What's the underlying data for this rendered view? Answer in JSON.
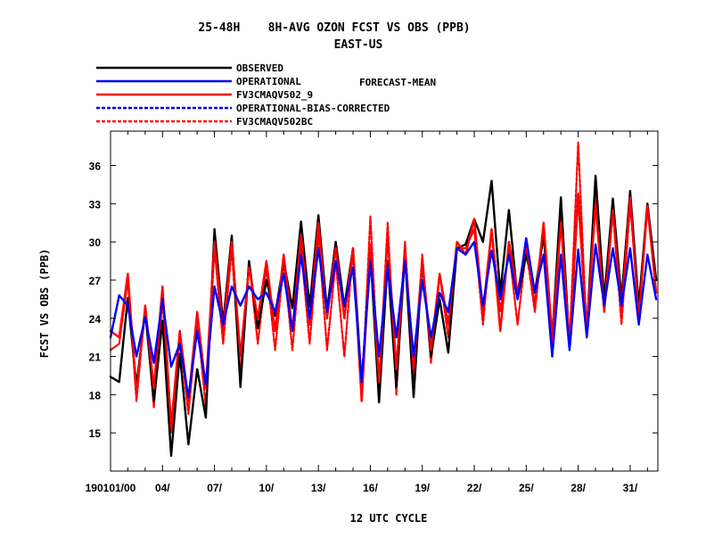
{
  "chart_data": {
    "type": "line",
    "title": "25-48H    8H-AVG OZON FCST VS OBS (PPB)",
    "subtitle": "EAST-US",
    "extra_label": "FORECAST-MEAN",
    "xlabel": "12 UTC CYCLE",
    "ylabel": "FCST VS OBS (PPB)",
    "xlim": [
      0,
      31.6
    ],
    "ylim": [
      12,
      38.7
    ],
    "grid": false,
    "legend_placement": "top-left",
    "x_ticks": [
      {
        "x": 0,
        "label": "190101/00"
      },
      {
        "x": 3,
        "label": "04/"
      },
      {
        "x": 6,
        "label": "07/"
      },
      {
        "x": 9,
        "label": "10/"
      },
      {
        "x": 12,
        "label": "13/"
      },
      {
        "x": 15,
        "label": "16/"
      },
      {
        "x": 18,
        "label": "19/"
      },
      {
        "x": 21,
        "label": "22/"
      },
      {
        "x": 24,
        "label": "25/"
      },
      {
        "x": 27,
        "label": "28/"
      },
      {
        "x": 30,
        "label": "31/"
      }
    ],
    "y_ticks": [
      15,
      18,
      21,
      24,
      27,
      30,
      33,
      36
    ],
    "series": [
      {
        "name": "OBSERVED",
        "color": "#000000",
        "dash": "solid",
        "width": 2.4,
        "x": [
          0,
          0.5,
          1,
          1.5,
          2,
          2.5,
          3,
          3.5,
          4,
          4.5,
          5,
          5.5,
          6,
          6.5,
          7,
          7.5,
          8,
          8.5,
          9,
          9.5,
          10,
          10.5,
          11,
          11.5,
          12,
          12.5,
          13,
          13.5,
          14,
          14.5,
          15,
          15.5,
          16,
          16.5,
          17,
          17.5,
          18,
          18.5,
          19,
          19.5,
          20,
          20.5,
          21,
          21.5,
          22,
          22.5,
          23,
          23.5,
          24,
          24.5,
          25,
          25.5,
          26,
          26.5,
          27,
          27.5,
          28,
          28.5,
          29,
          29.5,
          30,
          30.5,
          31,
          31.5
        ],
        "y": [
          19.4,
          19.0,
          25.6,
          18.7,
          24.5,
          17.5,
          23.8,
          13.2,
          21.2,
          14.1,
          20.0,
          16.2,
          31.0,
          23.6,
          30.5,
          18.6,
          28.5,
          23.2,
          27.0,
          24.2,
          28.5,
          24.8,
          31.6,
          24.9,
          32.1,
          24.6,
          30.0,
          24.9,
          29.5,
          18.8,
          29.2,
          17.4,
          28.5,
          18.6,
          29.0,
          17.8,
          28.5,
          21.0,
          25.5,
          21.3,
          29.5,
          29.8,
          31.8,
          30.0,
          34.8,
          26.0,
          32.5,
          25.5,
          29.0,
          26.0,
          30.5,
          22.5,
          33.5,
          21.8,
          33.7,
          23.0,
          35.2,
          25.5,
          33.4,
          25.5,
          34.0,
          25.0,
          33.0,
          27.0
        ]
      },
      {
        "name": "OPERATIONAL",
        "color": "#0000ff",
        "dash": "solid",
        "width": 2.4,
        "x": [
          0,
          0.5,
          1,
          1.5,
          2,
          2.5,
          3,
          3.5,
          4,
          4.5,
          5,
          5.5,
          6,
          6.5,
          7,
          7.5,
          8,
          8.5,
          9,
          9.5,
          10,
          10.5,
          11,
          11.5,
          12,
          12.5,
          13,
          13.5,
          14,
          14.5,
          15,
          15.5,
          16,
          16.5,
          17,
          17.5,
          18,
          18.5,
          19,
          19.5,
          20,
          20.5,
          21,
          21.5,
          22,
          22.5,
          23,
          23.5,
          24,
          24.5,
          25,
          25.5,
          26,
          26.5,
          27,
          27.5,
          28,
          28.5,
          29,
          29.5,
          30,
          30.5,
          31,
          31.5
        ],
        "y": [
          22.5,
          25.8,
          25.0,
          21.0,
          24.1,
          20.5,
          25.5,
          20.2,
          22.0,
          17.8,
          23.0,
          18.8,
          26.5,
          23.5,
          26.5,
          25.0,
          26.5,
          25.5,
          26.0,
          24.5,
          27.5,
          23.0,
          29.0,
          24.0,
          29.5,
          24.5,
          28.5,
          25.0,
          28.0,
          19.0,
          28.5,
          21.0,
          28.0,
          22.5,
          28.5,
          21.0,
          27.0,
          22.5,
          26.0,
          24.5,
          29.5,
          29.0,
          30.0,
          25.0,
          29.3,
          25.5,
          29.0,
          25.5,
          30.3,
          26.0,
          29.0,
          21.0,
          29.0,
          21.5,
          29.4,
          22.5,
          29.8,
          25.0,
          29.5,
          25.0,
          29.5,
          23.5,
          29.0,
          25.5
        ]
      },
      {
        "name": "FV3CMAQV502_9",
        "color": "#ff0000",
        "dash": "solid",
        "width": 2.4,
        "x": [
          0,
          0.5,
          1,
          1.5,
          2,
          2.5,
          3,
          3.5,
          4,
          4.5,
          5,
          5.5,
          6,
          6.5,
          7,
          7.5,
          8,
          8.5,
          9,
          9.5,
          10,
          10.5,
          11,
          11.5,
          12,
          12.5,
          13,
          13.5,
          14,
          14.5,
          15,
          15.5,
          16,
          16.5,
          17,
          17.5,
          18,
          18.5,
          19,
          19.5,
          20,
          20.5,
          21,
          21.5,
          22,
          22.5,
          23,
          23.5,
          24,
          24.5,
          25,
          25.5,
          26,
          26.5,
          27,
          27.5,
          28,
          28.5,
          29,
          29.5,
          30,
          30.5,
          31,
          31.5
        ],
        "y": [
          23.0,
          22.5,
          27.5,
          18.0,
          25.0,
          18.5,
          26.5,
          15.5,
          23.0,
          17.5,
          24.5,
          18.5,
          30.0,
          23.0,
          30.0,
          21.0,
          28.0,
          24.0,
          28.5,
          23.0,
          29.0,
          23.0,
          30.5,
          23.5,
          31.5,
          24.0,
          29.5,
          24.0,
          29.5,
          17.5,
          29.8,
          19.0,
          30.5,
          20.0,
          29.5,
          20.0,
          28.5,
          21.5,
          27.5,
          23.5,
          30.0,
          29.0,
          31.8,
          24.5,
          31.0,
          23.0,
          30.0,
          26.0,
          29.8,
          25.0,
          31.5,
          22.5,
          31.5,
          22.0,
          33.8,
          23.0,
          33.0,
          24.5,
          32.5,
          24.5,
          33.5,
          24.0,
          32.8,
          26.0
        ]
      },
      {
        "name": "OPERATIONAL-BIAS-CORRECTED",
        "color": "#0000ff",
        "dash": "dashed",
        "width": 1.6,
        "x": [],
        "y": []
      },
      {
        "name": "FV3CMAQV502BC",
        "color": "#ff0000",
        "dash": "dashed",
        "width": 2.2,
        "x": [
          0,
          0.5,
          1,
          1.5,
          2,
          2.5,
          3,
          3.5,
          4,
          4.5,
          5,
          5.5,
          6,
          6.5,
          7,
          7.5,
          8,
          8.5,
          9,
          9.5,
          10,
          10.5,
          11,
          11.5,
          12,
          12.5,
          13,
          13.5,
          14,
          14.5,
          15,
          15.5,
          16,
          16.5,
          17,
          17.5,
          18,
          18.5,
          19,
          19.5,
          20,
          20.5,
          21,
          21.5,
          22,
          22.5,
          23,
          23.5,
          24,
          24.5,
          25,
          25.5,
          26,
          26.5,
          27,
          27.5,
          28,
          28.5,
          29,
          29.5,
          30,
          30.5,
          31,
          31.5
        ],
        "y": [
          21.5,
          22.0,
          27.0,
          17.5,
          25.0,
          17.0,
          25.5,
          15.0,
          22.5,
          16.5,
          24.0,
          17.0,
          29.5,
          22.0,
          29.5,
          19.5,
          28.5,
          22.0,
          28.0,
          21.5,
          28.5,
          21.5,
          29.5,
          22.0,
          30.5,
          21.5,
          28.5,
          21.0,
          29.5,
          17.5,
          32.0,
          18.5,
          31.5,
          18.0,
          30.0,
          19.0,
          29.0,
          20.5,
          27.5,
          22.5,
          29.5,
          29.5,
          31.0,
          23.5,
          31.0,
          24.5,
          29.5,
          23.5,
          29.5,
          24.5,
          31.0,
          21.5,
          32.0,
          22.0,
          37.8,
          22.5,
          34.0,
          25.0,
          32.5,
          23.5,
          33.0,
          24.5,
          33.0,
          27.0
        ]
      }
    ]
  }
}
